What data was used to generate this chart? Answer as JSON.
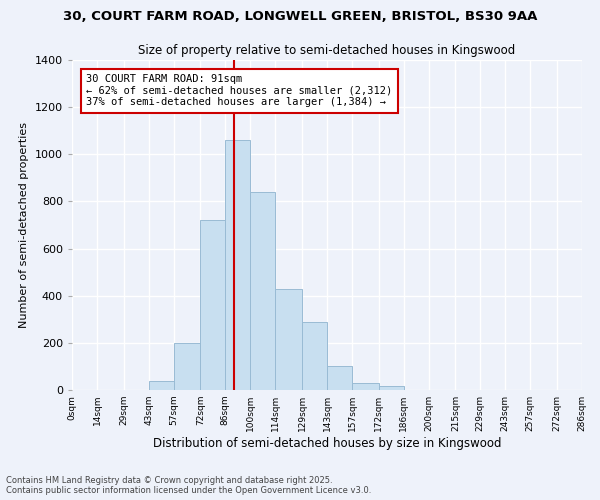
{
  "title_line1": "30, COURT FARM ROAD, LONGWELL GREEN, BRISTOL, BS30 9AA",
  "title_line2": "Size of property relative to semi-detached houses in Kingswood",
  "xlabel": "Distribution of semi-detached houses by size in Kingswood",
  "ylabel": "Number of semi-detached properties",
  "footer_line1": "Contains HM Land Registry data © Crown copyright and database right 2025.",
  "footer_line2": "Contains public sector information licensed under the Open Government Licence v3.0.",
  "annotation_title": "30 COURT FARM ROAD: 91sqm",
  "annotation_line1": "← 62% of semi-detached houses are smaller (2,312)",
  "annotation_line2": "37% of semi-detached houses are larger (1,384) →",
  "property_size": 91,
  "bin_edges": [
    0,
    14,
    29,
    43,
    57,
    72,
    86,
    100,
    114,
    129,
    143,
    157,
    172,
    186,
    200,
    215,
    229,
    243,
    257,
    272,
    286
  ],
  "bin_labels": [
    "0sqm",
    "14sqm",
    "29sqm",
    "43sqm",
    "57sqm",
    "72sqm",
    "86sqm",
    "100sqm",
    "114sqm",
    "129sqm",
    "143sqm",
    "157sqm",
    "172sqm",
    "186sqm",
    "200sqm",
    "215sqm",
    "229sqm",
    "243sqm",
    "257sqm",
    "272sqm",
    "286sqm"
  ],
  "counts": [
    0,
    0,
    0,
    40,
    200,
    720,
    1060,
    840,
    430,
    290,
    100,
    30,
    15,
    0,
    0,
    0,
    0,
    0,
    0,
    0
  ],
  "bar_color": "#c8dff0",
  "bar_edge_color": "#99bbd4",
  "vline_color": "#cc0000",
  "annotation_box_edge": "#cc0000",
  "bg_color": "#eef2fa",
  "grid_color": "#ffffff",
  "ylim": [
    0,
    1400
  ],
  "yticks": [
    0,
    200,
    400,
    600,
    800,
    1000,
    1200,
    1400
  ]
}
